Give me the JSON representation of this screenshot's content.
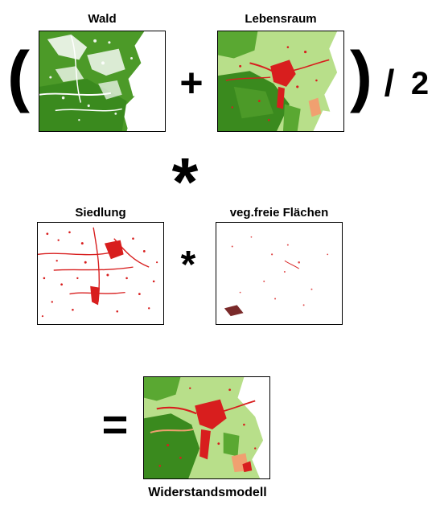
{
  "labels": {
    "wald": "Wald",
    "lebensraum": "Lebensraum",
    "siedlung": "Siedlung",
    "vegfrei": "veg.freie Flächen",
    "result": "Widerstandsmodell"
  },
  "operators": {
    "open_paren": "(",
    "plus": "+",
    "close_paren": ")",
    "divide": "/",
    "divisor": "2",
    "multiply_big": "*",
    "multiply_small": "*",
    "equals": "="
  },
  "colors": {
    "forest_dark": "#3a8a1e",
    "forest_mid": "#5aa832",
    "meadow_light": "#b8df8a",
    "settlement_red": "#d81e1e",
    "salmon": "#f0a070",
    "bare_brown": "#7a2a2a"
  }
}
